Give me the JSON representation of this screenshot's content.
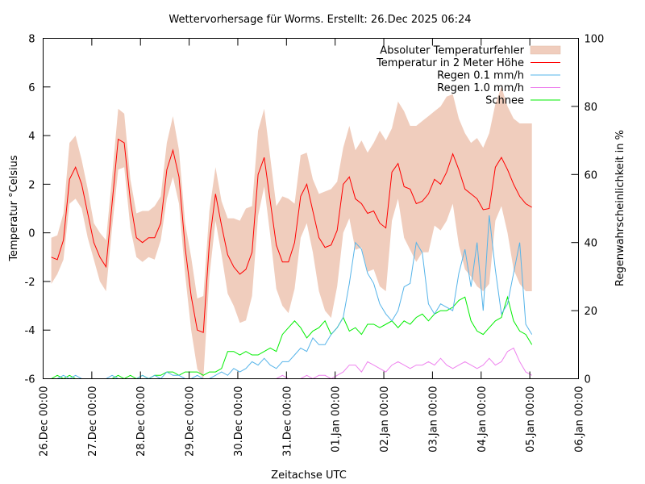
{
  "chart_data": {
    "type": "line",
    "title": "Wettervorhersage für Worms. Erstellt: 26.Dec 2025 06:24",
    "xlabel": "Zeitachse UTC",
    "ylabel": "Temperatur °Celsius",
    "y2label": "Regenwahrscheinlichkeit in %",
    "ylim": [
      -6,
      8
    ],
    "y2lim": [
      0,
      100
    ],
    "grid": false,
    "legend_position": "top-right",
    "x_unit": "hours since 26.Dec 00:00 UTC",
    "xlim_hours": [
      0,
      264
    ],
    "x_ticks": [
      {
        "hour": 0,
        "label": "26.Dec 00:00"
      },
      {
        "hour": 24,
        "label": "27.Dec 00:00"
      },
      {
        "hour": 48,
        "label": "28.Dec 00:00"
      },
      {
        "hour": 72,
        "label": "29.Dec 00:00"
      },
      {
        "hour": 96,
        "label": "30.Dec 00:00"
      },
      {
        "hour": 120,
        "label": "31.Dec 00:00"
      },
      {
        "hour": 144,
        "label": "01.Jan 00:00"
      },
      {
        "hour": 168,
        "label": "02.Jan 00:00"
      },
      {
        "hour": 192,
        "label": "03.Jan 00:00"
      },
      {
        "hour": 216,
        "label": "04.Jan 00:00"
      },
      {
        "hour": 240,
        "label": "05.Jan 00:00"
      },
      {
        "hour": 264,
        "label": "06.Jan 00:00"
      }
    ],
    "y_ticks": [
      "-6",
      "-4",
      "-2",
      "0",
      "2",
      "4",
      "6",
      "8"
    ],
    "y2_ticks": [
      "0",
      "20",
      "40",
      "60",
      "80",
      "100"
    ],
    "legend": [
      {
        "key": "band",
        "label": "Absoluter Temperaturfehler",
        "color": "#f0cdbd",
        "style": "fill"
      },
      {
        "key": "temp",
        "label": "Temperatur in 2 Meter Höhe",
        "color": "#ff0000",
        "style": "line"
      },
      {
        "key": "rain01",
        "label": "Regen 0.1 mm/h",
        "color": "#56b4e9",
        "style": "line"
      },
      {
        "key": "rain10",
        "label": "Regen 1.0 mm/h",
        "color": "#ee82ee",
        "style": "line"
      },
      {
        "key": "snow",
        "label": "Schnee",
        "color": "#00ee00",
        "style": "line"
      }
    ],
    "hours": [
      4,
      7,
      10,
      13,
      16,
      19,
      22,
      25,
      28,
      31,
      34,
      37,
      40,
      43,
      46,
      49,
      52,
      55,
      58,
      61,
      64,
      67,
      70,
      73,
      76,
      79,
      82,
      85,
      88,
      91,
      94,
      97,
      100,
      103,
      106,
      109,
      112,
      115,
      118,
      121,
      124,
      127,
      130,
      133,
      136,
      139,
      142,
      145,
      148,
      151,
      154,
      157,
      160,
      163,
      166,
      169,
      172,
      175,
      178,
      181,
      184,
      187,
      190,
      193,
      196,
      199,
      202,
      205,
      208,
      211,
      214,
      217,
      220,
      223,
      226,
      229,
      232,
      235,
      238,
      241
    ],
    "series": [
      {
        "name": "Temperatur in 2 Meter Höhe",
        "axis": "y1",
        "values": [
          -1.0,
          -1.1,
          -0.3,
          2.2,
          2.7,
          2.0,
          0.8,
          -0.4,
          -1.0,
          -1.4,
          1.2,
          3.85,
          3.7,
          1.3,
          -0.2,
          -0.4,
          -0.2,
          -0.2,
          0.4,
          2.6,
          3.4,
          2.3,
          -0.6,
          -2.6,
          -4.0,
          -4.1,
          -0.4,
          1.6,
          0.3,
          -0.9,
          -1.4,
          -1.7,
          -1.5,
          -0.8,
          2.4,
          3.1,
          1.3,
          -0.5,
          -1.2,
          -1.2,
          -0.4,
          1.5,
          2.0,
          0.9,
          -0.2,
          -0.6,
          -0.5,
          0.1,
          2.0,
          2.3,
          1.4,
          1.2,
          0.8,
          0.9,
          0.4,
          0.2,
          2.5,
          2.85,
          1.9,
          1.8,
          1.2,
          1.3,
          1.6,
          2.2,
          2.0,
          2.5,
          3.25,
          2.6,
          1.8,
          1.6,
          1.4,
          0.95,
          1.0,
          2.7,
          3.1,
          2.6,
          2.0,
          1.5,
          1.2,
          1.05
        ]
      },
      {
        "name": "Absoluter Temperaturfehler (untere Grenze)",
        "axis": "y1",
        "values": [
          -2.1,
          -1.7,
          -1.1,
          1.2,
          1.4,
          1.0,
          -0.2,
          -1.1,
          -2.0,
          -2.4,
          0.2,
          2.6,
          2.7,
          0.2,
          -1.0,
          -1.2,
          -1.0,
          -1.1,
          -0.3,
          1.4,
          2.3,
          1.2,
          -1.7,
          -4.0,
          -5.6,
          -6.0,
          -1.8,
          0.5,
          -0.9,
          -2.5,
          -3.0,
          -3.7,
          -3.6,
          -2.6,
          0.7,
          1.9,
          -0.1,
          -2.3,
          -3.0,
          -3.3,
          -2.3,
          -0.2,
          0.4,
          -0.8,
          -2.4,
          -3.2,
          -3.5,
          -2.2,
          0.0,
          0.6,
          -0.7,
          -0.6,
          -1.6,
          -1.5,
          -2.2,
          -2.4,
          0.5,
          1.4,
          -0.2,
          -0.7,
          -1.2,
          -0.8,
          -0.8,
          0.3,
          0.1,
          0.5,
          1.2,
          -0.5,
          -1.5,
          -1.8,
          -2.2,
          -2.4,
          -2.1,
          0.5,
          1.1,
          0.0,
          -1.5,
          -2.1,
          -2.4,
          -2.4
        ]
      },
      {
        "name": "Absoluter Temperaturfehler (obere Grenze)",
        "axis": "y1",
        "values": [
          -0.2,
          -0.1,
          0.8,
          3.7,
          4.0,
          3.0,
          1.8,
          0.4,
          0.0,
          -0.3,
          2.3,
          5.1,
          4.9,
          2.2,
          0.8,
          0.9,
          0.9,
          1.1,
          1.5,
          3.7,
          4.8,
          3.4,
          0.4,
          -1.0,
          -2.7,
          -2.6,
          0.9,
          2.7,
          1.3,
          0.6,
          0.6,
          0.5,
          1.0,
          1.1,
          4.2,
          5.1,
          3.1,
          1.1,
          1.5,
          1.4,
          1.2,
          3.2,
          3.3,
          2.2,
          1.6,
          1.7,
          1.8,
          2.1,
          3.5,
          4.4,
          3.4,
          3.8,
          3.3,
          3.7,
          4.2,
          3.8,
          4.3,
          5.4,
          5.0,
          4.4,
          4.4,
          4.6,
          4.8,
          5.0,
          5.2,
          5.6,
          5.7,
          4.7,
          4.1,
          3.7,
          3.9,
          3.5,
          4.1,
          5.3,
          6.0,
          5.2,
          4.7,
          4.5,
          4.5,
          4.5
        ]
      },
      {
        "name": "Regen 0.1 mm/h",
        "axis": "y2",
        "values": [
          0,
          0,
          1,
          0,
          1,
          0,
          0,
          0,
          0,
          0,
          1,
          0,
          0,
          0,
          0,
          1,
          0,
          1,
          0,
          2,
          1,
          1,
          0,
          0,
          1,
          0,
          0,
          1,
          2,
          1,
          3,
          2,
          3,
          5,
          4,
          6,
          4,
          3,
          5,
          5,
          7,
          9,
          8,
          12,
          10,
          10,
          13,
          15,
          18,
          28,
          40,
          38,
          31,
          28,
          22,
          19,
          17,
          20,
          27,
          28,
          40,
          37,
          22,
          19,
          22,
          21,
          20,
          31,
          38,
          27,
          40,
          20,
          48,
          32,
          19,
          22,
          31,
          40,
          16,
          13
        ]
      },
      {
        "name": "Regen 1.0 mm/h",
        "axis": "y2",
        "values": [
          0,
          0,
          0,
          0,
          0,
          0,
          0,
          0,
          0,
          0,
          0,
          0,
          0,
          0,
          0,
          0,
          0,
          0,
          0,
          0,
          0,
          0,
          0,
          0,
          0,
          0,
          0,
          0,
          0,
          0,
          0,
          0,
          0,
          0,
          0,
          0,
          0,
          0,
          1,
          0,
          0,
          0,
          1,
          0,
          1,
          1,
          0,
          1,
          2,
          4,
          4,
          2,
          5,
          4,
          3,
          2,
          4,
          5,
          4,
          3,
          4,
          4,
          5,
          4,
          6,
          4,
          3,
          4,
          5,
          4,
          3,
          4,
          6,
          4,
          5,
          8,
          9,
          5,
          2,
          1
        ]
      },
      {
        "name": "Schnee",
        "axis": "y2",
        "values": [
          0,
          1,
          0,
          1,
          0,
          0,
          0,
          0,
          0,
          0,
          0,
          1,
          0,
          1,
          0,
          1,
          0,
          1,
          1,
          2,
          2,
          1,
          2,
          2,
          2,
          1,
          2,
          2,
          3,
          8,
          8,
          7,
          8,
          7,
          7,
          8,
          9,
          8,
          13,
          15,
          17,
          15,
          12,
          14,
          15,
          17,
          13,
          15,
          18,
          14,
          15,
          13,
          16,
          16,
          15,
          16,
          17,
          15,
          17,
          16,
          18,
          19,
          17,
          19,
          20,
          20,
          21,
          23,
          24,
          17,
          14,
          13,
          15,
          17,
          18,
          24,
          17,
          14,
          13,
          10
        ]
      }
    ]
  }
}
